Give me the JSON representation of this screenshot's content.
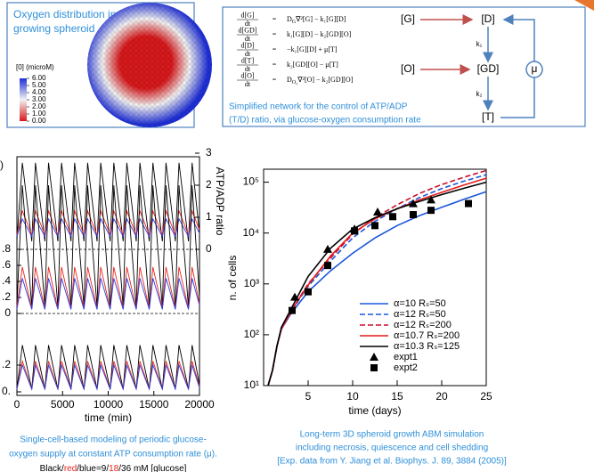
{
  "spheroid": {
    "title": [
      "Oxygen distribution in a",
      "growing spheroid"
    ],
    "legend_title": "[0] (microM)",
    "legend_ticks": [
      {
        "value": 6,
        "label": "6.00"
      },
      {
        "value": 5,
        "label": "5.00"
      },
      {
        "value": 4,
        "label": "4.00"
      },
      {
        "value": 3,
        "label": "3.00"
      },
      {
        "value": 2,
        "label": "2.00"
      },
      {
        "value": 1,
        "label": "1.00"
      },
      {
        "value": 0,
        "label": "0.00"
      }
    ],
    "colors": [
      "#d7191c",
      "#f2f2f2",
      "#1f2fd6"
    ]
  },
  "equations": {
    "rows": [
      {
        "num": "d[G]",
        "den": "dt",
        "rel": "=",
        "rhs": [
          "D",
          "G",
          "∇²[G] − k₁[G][D]"
        ]
      },
      {
        "num": "d[GD]",
        "den": "dt",
        "rel": "=",
        "rhs": [
          "k₁[G][D] − k₂[GD][O]"
        ]
      },
      {
        "num": "d[D]",
        "den": "dt",
        "rel": "=",
        "rhs": [
          "−k₁[G][D] + μ[T]"
        ]
      },
      {
        "num": "d[T]",
        "den": "dt",
        "rel": "=",
        "rhs": [
          "k₂[GD][O] − μ[T]"
        ]
      },
      {
        "num": "d[O]",
        "den": "dt",
        "rel": "=",
        "rhs": [
          "D",
          "O₂",
          "∇²[O] − k₂[GD][O]"
        ]
      }
    ],
    "caption": [
      "Simplified network for the control of ATP/ADP",
      "(T/D) ratio, via glucose-oxygen consumption rate"
    ]
  },
  "network": {
    "nodes": [
      "[G]",
      "[D]",
      "[O]",
      "[GD]",
      "[T]"
    ],
    "rates": [
      "k₁",
      "k₂",
      "μ"
    ]
  },
  "chart_data": [
    {
      "type": "line",
      "panel_label": ")",
      "xlim": [
        0,
        20000
      ],
      "y2lim": [
        0,
        3
      ],
      "y2ticks": [
        0,
        1,
        2,
        3
      ],
      "y2label": "ATP/ADP ratio",
      "zero_line": true,
      "x": [
        0,
        600,
        1630,
        2030,
        3060,
        3460,
        4490,
        4890,
        5920,
        6320,
        7350,
        7750,
        8780,
        9180,
        10210,
        10610,
        11640,
        12040,
        13070,
        13470,
        14500,
        14900,
        15930,
        16330,
        17360,
        17760,
        18790,
        19190,
        20000
      ],
      "series": [
        {
          "color": "#000000",
          "axis": "y2",
          "values": [
            0.3,
            2.7,
            0.25,
            2.7,
            0.25,
            2.7,
            0.25,
            2.7,
            0.25,
            2.7,
            0.25,
            2.7,
            0.25,
            2.7,
            0.25,
            2.7,
            0.25,
            2.7,
            0.25,
            2.7,
            0.25,
            2.7,
            0.25,
            2.7,
            0.25,
            2.7,
            0.25,
            2.7,
            0.5
          ]
        },
        {
          "color": "#e8231c",
          "axis": "y2",
          "values": [
            0.45,
            1.2,
            0.45,
            1.2,
            0.45,
            1.2,
            0.45,
            1.2,
            0.45,
            1.2,
            0.45,
            1.2,
            0.45,
            1.2,
            0.45,
            1.2,
            0.45,
            1.2,
            0.45,
            1.2,
            0.45,
            1.2,
            0.45,
            1.2,
            0.45,
            1.2,
            0.45,
            1.2,
            0.6
          ]
        },
        {
          "color": "#2b3fe0",
          "axis": "y2",
          "values": [
            0.4,
            0.95,
            0.4,
            0.95,
            0.4,
            0.95,
            0.4,
            0.95,
            0.4,
            0.95,
            0.4,
            0.95,
            0.4,
            0.95,
            0.4,
            0.95,
            0.4,
            0.95,
            0.4,
            0.95,
            0.4,
            0.95,
            0.4,
            0.95,
            0.4,
            0.95,
            0.4,
            0.95,
            0.5
          ]
        }
      ]
    },
    {
      "type": "line",
      "xlim": [
        0,
        20000
      ],
      "ylim": [
        0,
        0.8
      ],
      "yticks": [
        {
          "value": 0.8,
          "label": ".8"
        },
        {
          "value": 0.6,
          "label": ".6"
        },
        {
          "value": 0.4,
          "label": ".4"
        },
        {
          "value": 0.2,
          "label": ".2"
        },
        0
      ],
      "zero_line": true,
      "x": [
        0,
        600,
        1630,
        2030,
        3060,
        3460,
        4490,
        4890,
        5920,
        6320,
        7350,
        7750,
        8780,
        9180,
        10210,
        10610,
        11640,
        12040,
        13070,
        13470,
        14500,
        14900,
        15930,
        16330,
        17360,
        17760,
        18790,
        19190,
        20000
      ],
      "series": [
        {
          "color": "#000000",
          "values": [
            0.1,
            1.6,
            0.08,
            1.6,
            0.08,
            1.6,
            0.08,
            1.6,
            0.08,
            1.6,
            0.08,
            1.6,
            0.08,
            1.6,
            0.08,
            1.6,
            0.08,
            1.6,
            0.08,
            1.6,
            0.08,
            1.6,
            0.08,
            1.6,
            0.08,
            1.6,
            0.08,
            1.6,
            0.2
          ]
        },
        {
          "color": "#e8231c",
          "values": [
            0.08,
            0.58,
            0.06,
            0.58,
            0.06,
            0.58,
            0.06,
            0.58,
            0.06,
            0.58,
            0.06,
            0.58,
            0.06,
            0.58,
            0.06,
            0.58,
            0.06,
            0.58,
            0.06,
            0.58,
            0.06,
            0.58,
            0.06,
            0.58,
            0.06,
            0.58,
            0.06,
            0.58,
            0.12
          ]
        },
        {
          "color": "#2b3fe0",
          "values": [
            0.05,
            0.44,
            0.05,
            0.44,
            0.05,
            0.44,
            0.05,
            0.44,
            0.05,
            0.44,
            0.05,
            0.44,
            0.05,
            0.44,
            0.05,
            0.44,
            0.05,
            0.44,
            0.05,
            0.44,
            0.05,
            0.44,
            0.05,
            0.44,
            0.05,
            0.44,
            0.05,
            0.44,
            0.1
          ]
        }
      ]
    },
    {
      "type": "line",
      "xlim": [
        0,
        20000
      ],
      "xticks": [
        0,
        5000,
        10000,
        15000,
        20000
      ],
      "xlabel": "time  (min)",
      "ylim": [
        0,
        0.2
      ],
      "yticks": [
        {
          "value": 0.2,
          "label": ".2"
        },
        {
          "value": 0,
          "label": "0."
        }
      ],
      "x": [
        0,
        600,
        1630,
        2030,
        3060,
        3460,
        4490,
        4890,
        5920,
        6320,
        7350,
        7750,
        8780,
        9180,
        10210,
        10610,
        11640,
        12040,
        13070,
        13470,
        14500,
        14900,
        15930,
        16330,
        17360,
        17760,
        18790,
        19190,
        20000
      ],
      "series": [
        {
          "color": "#000000",
          "values": [
            0.02,
            0.35,
            0.02,
            0.35,
            0.02,
            0.35,
            0.02,
            0.35,
            0.02,
            0.35,
            0.02,
            0.35,
            0.02,
            0.35,
            0.02,
            0.35,
            0.02,
            0.35,
            0.02,
            0.35,
            0.02,
            0.35,
            0.02,
            0.35,
            0.02,
            0.35,
            0.02,
            0.35,
            0.05
          ]
        },
        {
          "color": "#e8231c",
          "values": [
            0.02,
            0.23,
            0.02,
            0.23,
            0.02,
            0.23,
            0.02,
            0.23,
            0.02,
            0.23,
            0.02,
            0.23,
            0.02,
            0.23,
            0.02,
            0.23,
            0.02,
            0.23,
            0.02,
            0.23,
            0.02,
            0.23,
            0.02,
            0.23,
            0.02,
            0.23,
            0.02,
            0.23,
            0.04
          ]
        },
        {
          "color": "#2b3fe0",
          "values": [
            0.02,
            0.2,
            0.02,
            0.2,
            0.02,
            0.2,
            0.02,
            0.2,
            0.02,
            0.2,
            0.02,
            0.2,
            0.02,
            0.2,
            0.02,
            0.2,
            0.02,
            0.2,
            0.02,
            0.2,
            0.02,
            0.2,
            0.02,
            0.2,
            0.02,
            0.2,
            0.02,
            0.2,
            0.03
          ]
        }
      ]
    },
    {
      "type": "line",
      "xlabel": "time  (days)",
      "ylabel": "n. of cells",
      "xlim": [
        0,
        25
      ],
      "xticks": [
        5,
        10,
        15,
        20,
        25
      ],
      "ylim": [
        10,
        180000
      ],
      "log_y": true,
      "yticks": [
        {
          "value": 10,
          "label": "10¹"
        },
        {
          "value": 100,
          "label": "10²"
        },
        {
          "value": 1000,
          "label": "10³"
        },
        {
          "value": 10000,
          "label": "10⁴"
        },
        {
          "value": 100000,
          "label": "10⁵"
        }
      ],
      "legend": "lower right",
      "x": [
        0.5,
        1,
        1.5,
        2,
        3,
        4,
        5,
        7.5,
        10,
        12.5,
        15,
        17.5,
        20,
        22.5,
        25
      ],
      "series": [
        {
          "name": "α=10 Rₛ=50",
          "color": "#1a56db",
          "dash": false,
          "values": [
            10,
            20,
            60,
            130,
            250,
            420,
            700,
            1800,
            4000,
            8000,
            14000,
            22000,
            32000,
            46000,
            65000
          ]
        },
        {
          "name": "α=12 Rₛ=50",
          "color": "#1a56db",
          "dash": true,
          "values": [
            10,
            20,
            60,
            130,
            260,
            500,
            900,
            2800,
            8000,
            17000,
            30000,
            50000,
            75000,
            105000,
            140000
          ]
        },
        {
          "name": "α=12 Rₛ=200",
          "color": "#c8102e",
          "dash": true,
          "values": [
            10,
            20,
            60,
            130,
            270,
            530,
            1000,
            3200,
            9500,
            20000,
            36000,
            60000,
            90000,
            125000,
            170000
          ]
        },
        {
          "name": "α=10.7 Rₛ=200",
          "color": "#e31a1c",
          "dash": false,
          "values": [
            10,
            20,
            60,
            130,
            270,
            520,
            950,
            3500,
            10000,
            19000,
            30000,
            45000,
            63000,
            88000,
            120000
          ]
        },
        {
          "name": "α=10.3 Rₛ=125",
          "color": "#000000",
          "dash": false,
          "values": [
            10,
            20,
            60,
            140,
            300,
            650,
            1400,
            5000,
            12000,
            20000,
            30000,
            42000,
            57000,
            76000,
            100000
          ]
        },
        {
          "name": "expt1",
          "type": "scatter",
          "marker": "triangle",
          "color": "#000000",
          "x": [
            3.5,
            7.2,
            10.2,
            12.8,
            16.8,
            18.8
          ],
          "values": [
            550,
            4800,
            12000,
            26000,
            38000,
            45000
          ]
        },
        {
          "name": "expt2",
          "type": "scatter",
          "marker": "square",
          "color": "#000000",
          "x": [
            3.2,
            5,
            7.2,
            10.2,
            12.5,
            14.5,
            16.8,
            18.8,
            23
          ],
          "values": [
            300,
            700,
            2300,
            11000,
            14000,
            21000,
            23000,
            28000,
            38000
          ]
        }
      ]
    }
  ],
  "captions": {
    "left": [
      "Single-cell-based modeling of periodic glucose-",
      "oxygen supply at constant ATP consumption rate (μ)."
    ],
    "left_parts": [
      {
        "text": "Black/",
        "color": "#000000"
      },
      {
        "text": "red",
        "color": "#e8231c"
      },
      {
        "text": "/blue=9/",
        "color": "#000000"
      },
      {
        "text": "18",
        "color": "#e8231c"
      },
      {
        "text": "/36 mM [glucose]",
        "color": "#000000"
      }
    ],
    "right": [
      "Long-term 3D spheroid growth ABM simulation",
      "including necrosis, quiescence and cell shedding",
      "[Exp. data from Y. Jiang et al. Biophys. J. 89, 3884 (2005)]"
    ]
  }
}
